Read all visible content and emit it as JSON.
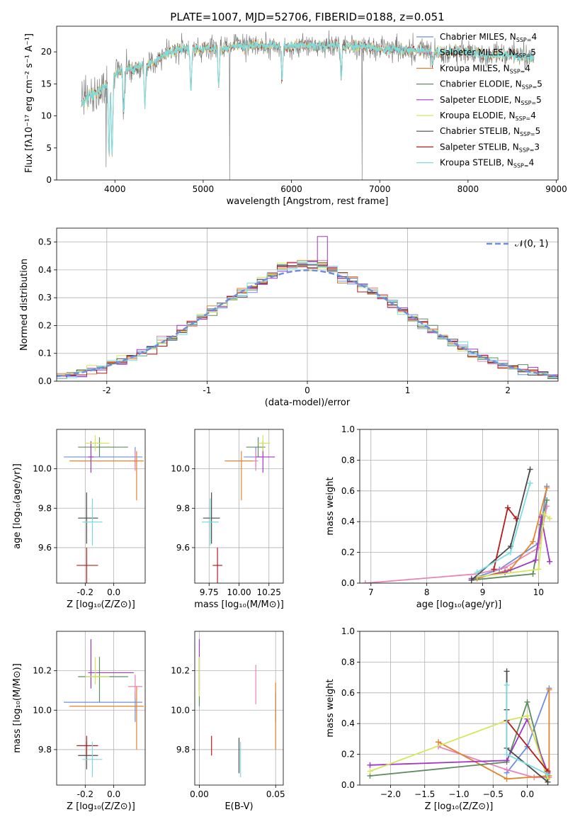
{
  "figure_title": "PLATE=1007, MJD=52706, FIBERID=0188, z=0.051",
  "legend_models": [
    {
      "name": "Chabrier MILES",
      "n_ssp": "4",
      "color": "#6f8fdc"
    },
    {
      "name": "Salpeter MILES",
      "n_ssp": "5",
      "color": "#ea83b7"
    },
    {
      "name": "Kroupa MILES",
      "n_ssp": "4",
      "color": "#e2832e"
    },
    {
      "name": "Chabrier ELODIE",
      "n_ssp": "5",
      "color": "#5d8c5f"
    },
    {
      "name": "Salpeter ELODIE",
      "n_ssp": "5",
      "color": "#9f36c4"
    },
    {
      "name": "Kroupa ELODIE",
      "n_ssp": "4",
      "color": "#d6e65a"
    },
    {
      "name": "Chabrier STELIB",
      "n_ssp": "5",
      "color": "#4a4a4a"
    },
    {
      "name": "Salpeter STELIB",
      "n_ssp": "3",
      "color": "#b71c1c"
    },
    {
      "name": "Kroupa STELIB",
      "n_ssp": "4",
      "color": "#7ddbe0"
    }
  ],
  "chart_data": [
    {
      "id": "spectrum",
      "type": "line",
      "title": "PLATE=1007, MJD=52706, FIBERID=0188, z=0.051",
      "xlabel": "wavelength [Angstrom, rest frame]",
      "ylabel": "Flux [fλ10⁻¹⁷ erg cm⁻² s⁻¹ A⁻¹]",
      "xlim": [
        3340,
        9020
      ],
      "ylim": [
        0,
        24
      ],
      "xticks": [
        4000,
        5000,
        6000,
        7000,
        8000,
        9000
      ],
      "yticks": [
        0,
        5,
        10,
        15,
        20
      ],
      "observed_color": "#808080",
      "model_color": "#7ddbe0",
      "spectrum_range": [
        3620,
        8750
      ],
      "continuum_points": [
        [
          3620,
          12
        ],
        [
          3700,
          13
        ],
        [
          3800,
          13.5
        ],
        [
          3900,
          15
        ],
        [
          4000,
          16.5
        ],
        [
          4100,
          17.5
        ],
        [
          4200,
          17
        ],
        [
          4300,
          18
        ],
        [
          4400,
          18
        ],
        [
          4600,
          20
        ],
        [
          4800,
          20.5
        ],
        [
          5000,
          20.5
        ],
        [
          5200,
          20.5
        ],
        [
          5400,
          21
        ],
        [
          5600,
          21
        ],
        [
          5800,
          21
        ],
        [
          6000,
          20.8
        ],
        [
          6200,
          21
        ],
        [
          6500,
          21
        ],
        [
          6800,
          20.8
        ],
        [
          7000,
          20.5
        ],
        [
          7200,
          20.5
        ],
        [
          7400,
          20.3
        ],
        [
          7600,
          20
        ],
        [
          7800,
          20
        ],
        [
          8000,
          20
        ],
        [
          8200,
          19.5
        ],
        [
          8500,
          19.5
        ],
        [
          8750,
          19
        ]
      ],
      "absorption_dips": [
        [
          3933,
          4
        ],
        [
          3968,
          4
        ],
        [
          4101,
          11
        ],
        [
          4340,
          12
        ],
        [
          4861,
          14
        ],
        [
          5175,
          15
        ],
        [
          5893,
          16
        ],
        [
          6563,
          16
        ],
        [
          7600,
          18
        ]
      ],
      "spikes": [
        [
          3900,
          2
        ],
        [
          4410,
          0
        ],
        [
          5300,
          0
        ],
        [
          6800,
          0
        ],
        [
          7410,
          0
        ]
      ],
      "noise_amplitude": 1.8
    },
    {
      "id": "residuals",
      "type": "histogram",
      "xlabel": "(data-model)/error",
      "ylabel": "Normed distribution",
      "xlim": [
        -2.5,
        2.5
      ],
      "ylim": [
        0,
        0.55
      ],
      "xticks": [
        -2,
        -1,
        0,
        1,
        2
      ],
      "yticks": [
        0,
        0.1,
        0.2,
        0.3,
        0.4,
        0.5
      ],
      "bin_width": 0.1,
      "legend": "𝒩(0, 1)",
      "reference_curve_color": "#6f8fdc",
      "reference": "normal_pdf"
    },
    {
      "id": "age_vs_Z",
      "type": "scatter",
      "xlabel": "Z [log₁₀(Z/Z⊙)]",
      "ylabel": "age  [log₁₀(age/yr)]",
      "xlim": [
        -0.4,
        0.22
      ],
      "ylim": [
        9.42,
        10.2
      ],
      "xticks": [
        -0.2,
        0.0
      ],
      "yticks": [
        9.6,
        9.8,
        10.0
      ],
      "points": [
        {
          "model": 0,
          "x": 0.15,
          "y": 10.06,
          "xerr": [
            0.5,
            0.05
          ],
          "yerr": [
            0.05,
            0.05
          ]
        },
        {
          "model": 1,
          "x": 0.15,
          "y": 10.04,
          "xerr": [
            0.02,
            0.02
          ],
          "yerr": [
            0.05,
            0.05
          ]
        },
        {
          "model": 2,
          "x": 0.16,
          "y": 10.04,
          "xerr": [
            0.47,
            0.05
          ],
          "yerr": [
            0.2,
            0.05
          ]
        },
        {
          "model": 3,
          "x": -0.1,
          "y": 10.11,
          "xerr": [
            0.15,
            0.2
          ],
          "yerr": [
            0.05,
            0.05
          ]
        },
        {
          "model": 4,
          "x": -0.16,
          "y": 10.06,
          "xerr": [
            0.02,
            0.02
          ],
          "yerr": [
            0.08,
            0.08
          ]
        },
        {
          "model": 5,
          "x": -0.13,
          "y": 10.13,
          "xerr": [
            0.07,
            0.1
          ],
          "yerr": [
            0.04,
            0.04
          ]
        },
        {
          "model": 6,
          "x": -0.19,
          "y": 9.75,
          "xerr": [
            0.06,
            0.08
          ],
          "yerr": [
            0.13,
            0.13
          ]
        },
        {
          "model": 7,
          "x": -0.19,
          "y": 9.51,
          "xerr": [
            0.07,
            0.08
          ],
          "yerr": [
            0.09,
            0.09
          ]
        },
        {
          "model": 8,
          "x": -0.15,
          "y": 9.73,
          "xerr": [
            0.07,
            0.07
          ],
          "yerr": [
            0.12,
            0.12
          ]
        }
      ]
    },
    {
      "id": "age_vs_mass",
      "type": "scatter",
      "xlabel": "mass [log₁₀(M/M⊙)]",
      "ylabel": "",
      "xlim": [
        9.63,
        10.37
      ],
      "ylim": [
        9.42,
        10.2
      ],
      "xticks": [
        9.75,
        10.0,
        10.25
      ],
      "yticks": [
        9.6,
        9.8,
        10.0
      ],
      "points": [
        {
          "model": 0,
          "x": 10.14,
          "y": 10.06,
          "xerr": [
            0.1,
            0.05
          ],
          "yerr": [
            0.05,
            0.05
          ]
        },
        {
          "model": 1,
          "x": 10.14,
          "y": 10.04,
          "xerr": [
            0.02,
            0.02
          ],
          "yerr": [
            0.05,
            0.05
          ]
        },
        {
          "model": 2,
          "x": 10.02,
          "y": 10.04,
          "xerr": [
            0.14,
            0.1
          ],
          "yerr": [
            0.2,
            0.05
          ]
        },
        {
          "model": 3,
          "x": 10.16,
          "y": 10.11,
          "xerr": [
            0.1,
            0.06
          ],
          "yerr": [
            0.05,
            0.05
          ]
        },
        {
          "model": 4,
          "x": 10.2,
          "y": 10.06,
          "xerr": [
            0.06,
            0.1
          ],
          "yerr": [
            0.08,
            0.08
          ]
        },
        {
          "model": 5,
          "x": 10.2,
          "y": 10.13,
          "xerr": [
            0.04,
            0.06
          ],
          "yerr": [
            0.04,
            0.04
          ]
        },
        {
          "model": 6,
          "x": 9.77,
          "y": 9.75,
          "xerr": [
            0.07,
            0.07
          ],
          "yerr": [
            0.13,
            0.13
          ]
        },
        {
          "model": 7,
          "x": 9.82,
          "y": 9.51,
          "xerr": [
            0.04,
            0.04
          ],
          "yerr": [
            0.09,
            0.09
          ]
        },
        {
          "model": 8,
          "x": 9.76,
          "y": 9.73,
          "xerr": [
            0.07,
            0.07
          ],
          "yerr": [
            0.12,
            0.12
          ]
        }
      ]
    },
    {
      "id": "mass_weight_vs_age",
      "type": "line",
      "xlabel": "age  [log₁₀(age/yr)]",
      "ylabel": "mass weight",
      "xlim": [
        6.8,
        10.35
      ],
      "ylim": [
        0,
        1.0
      ],
      "xticks": [
        7,
        8,
        9,
        10
      ],
      "yticks": [
        0.0,
        0.2,
        0.4,
        0.6,
        0.8,
        1.0
      ],
      "series": [
        {
          "model": 0,
          "x": [
            8.9,
            9.3,
            10.0,
            10.15
          ],
          "y": [
            0.04,
            0.09,
            0.26,
            0.63
          ]
        },
        {
          "model": 1,
          "x": [
            6.9,
            8.9,
            9.4,
            10.0,
            10.15
          ],
          "y": [
            0.0,
            0.06,
            0.1,
            0.23,
            0.5
          ]
        },
        {
          "model": 2,
          "x": [
            8.9,
            9.5,
            9.9,
            10.15
          ],
          "y": [
            0.03,
            0.09,
            0.27,
            0.62
          ]
        },
        {
          "model": 3,
          "x": [
            8.8,
            9.9,
            10.05,
            10.15
          ],
          "y": [
            0.02,
            0.06,
            0.38,
            0.54
          ]
        },
        {
          "model": 4,
          "x": [
            8.8,
            9.4,
            9.95,
            10.05,
            10.2
          ],
          "y": [
            0.03,
            0.07,
            0.15,
            0.43,
            0.14
          ]
        },
        {
          "model": 5,
          "x": [
            8.9,
            10.0,
            10.1,
            10.2
          ],
          "y": [
            0.04,
            0.09,
            0.45,
            0.42
          ]
        },
        {
          "model": 6,
          "x": [
            8.8,
            9.5,
            9.85
          ],
          "y": [
            0.02,
            0.24,
            0.74
          ]
        },
        {
          "model": 7,
          "x": [
            9.2,
            9.45,
            9.6
          ],
          "y": [
            0.09,
            0.49,
            0.42
          ]
        },
        {
          "model": 8,
          "x": [
            8.9,
            9.5,
            9.85
          ],
          "y": [
            0.07,
            0.2,
            0.65
          ]
        }
      ]
    },
    {
      "id": "mass_vs_Z",
      "type": "scatter",
      "xlabel": "Z [log₁₀(Z/Z⊙)]",
      "ylabel": "mass [log₁₀(M/M⊙)]",
      "xlim": [
        -0.4,
        0.22
      ],
      "ylim": [
        9.62,
        10.4
      ],
      "xticks": [
        -0.2,
        0.0
      ],
      "yticks": [
        9.8,
        10.0,
        10.2
      ],
      "points": [
        {
          "model": 0,
          "x": 0.15,
          "y": 10.04,
          "xerr": [
            0.5,
            0.05
          ],
          "yerr": [
            0.1,
            0.05
          ]
        },
        {
          "model": 1,
          "x": 0.15,
          "y": 10.12,
          "xerr": [
            0.05,
            0.05
          ],
          "yerr": [
            0.06,
            0.06
          ]
        },
        {
          "model": 2,
          "x": 0.16,
          "y": 10.02,
          "xerr": [
            0.47,
            0.05
          ],
          "yerr": [
            0.22,
            0.1
          ]
        },
        {
          "model": 3,
          "x": -0.1,
          "y": 10.17,
          "xerr": [
            0.15,
            0.2
          ],
          "yerr": [
            0.13,
            0.1
          ]
        },
        {
          "model": 4,
          "x": -0.16,
          "y": 10.19,
          "xerr": [
            0.02,
            0.3
          ],
          "yerr": [
            0.08,
            0.17
          ]
        },
        {
          "model": 5,
          "x": -0.13,
          "y": 10.17,
          "xerr": [
            0.07,
            0.1
          ],
          "yerr": [
            0.04,
            0.1
          ]
        },
        {
          "model": 6,
          "x": -0.19,
          "y": 9.77,
          "xerr": [
            0.06,
            0.08
          ],
          "yerr": [
            0.07,
            0.07
          ]
        },
        {
          "model": 7,
          "x": -0.19,
          "y": 9.82,
          "xerr": [
            0.07,
            0.08
          ],
          "yerr": [
            0.05,
            0.05
          ]
        },
        {
          "model": 8,
          "x": -0.15,
          "y": 9.75,
          "xerr": [
            0.07,
            0.07
          ],
          "yerr": [
            0.09,
            0.09
          ]
        }
      ]
    },
    {
      "id": "mass_vs_ebv",
      "type": "scatter",
      "xlabel": "E(B-V)",
      "ylabel": "",
      "xlim": [
        -0.003,
        0.055
      ],
      "ylim": [
        9.62,
        10.4
      ],
      "xticks": [
        0.0,
        0.05
      ],
      "yticks": [
        9.8,
        10.0,
        10.2
      ],
      "points": [
        {
          "model": 0,
          "x": 0.05,
          "y": 10.04,
          "xerr": [
            0,
            0
          ],
          "yerr": [
            0.1,
            0.05
          ]
        },
        {
          "model": 1,
          "x": 0.037,
          "y": 10.13,
          "xerr": [
            0,
            0
          ],
          "yerr": [
            0.1,
            0.1
          ]
        },
        {
          "model": 2,
          "x": 0.05,
          "y": 9.97,
          "xerr": [
            0,
            0
          ],
          "yerr": [
            0.17,
            0.17
          ]
        },
        {
          "model": 3,
          "x": 0.0,
          "y": 10.17,
          "xerr": [
            0,
            0
          ],
          "yerr": [
            0.15,
            0.1
          ]
        },
        {
          "model": 4,
          "x": 0.0,
          "y": 10.2,
          "xerr": [
            0,
            0
          ],
          "yerr": [
            0.1,
            0.16
          ]
        },
        {
          "model": 5,
          "x": 0.0,
          "y": 10.17,
          "xerr": [
            0,
            0
          ],
          "yerr": [
            0.1,
            0.1
          ]
        },
        {
          "model": 6,
          "x": 0.026,
          "y": 9.77,
          "xerr": [
            0,
            0
          ],
          "yerr": [
            0.09,
            0.09
          ]
        },
        {
          "model": 7,
          "x": 0.008,
          "y": 9.82,
          "xerr": [
            0,
            0
          ],
          "yerr": [
            0.05,
            0.05
          ]
        },
        {
          "model": 8,
          "x": 0.027,
          "y": 9.75,
          "xerr": [
            0,
            0
          ],
          "yerr": [
            0.09,
            0.09
          ]
        }
      ]
    },
    {
      "id": "mass_weight_vs_Z",
      "type": "line",
      "xlabel": "Z [log₁₀(Z/Z⊙)]",
      "ylabel": "mass weight",
      "xlim": [
        -2.45,
        0.45
      ],
      "ylim": [
        0,
        1.0
      ],
      "xticks": [
        -2.0,
        -1.5,
        -1.0,
        -0.5,
        0.0
      ],
      "yticks": [
        0.0,
        0.2,
        0.4,
        0.6,
        0.8,
        1.0
      ],
      "series": [
        {
          "model": 0,
          "x": [
            -0.3,
            0.0,
            0.32
          ],
          "y": [
            0.08,
            0.25,
            0.63
          ]
        },
        {
          "model": 1,
          "x": [
            -1.3,
            -0.3,
            0.1,
            0.32
          ],
          "y": [
            0.25,
            0.1,
            0.05,
            0.05
          ]
        },
        {
          "model": 2,
          "x": [
            -1.3,
            -0.3,
            0.32,
            0.32
          ],
          "y": [
            0.28,
            0.04,
            0.06,
            0.62
          ]
        },
        {
          "model": 3,
          "x": [
            -2.3,
            -0.3,
            0.0,
            0.3
          ],
          "y": [
            0.06,
            0.15,
            0.54,
            0.02
          ]
        },
        {
          "model": 4,
          "x": [
            -2.3,
            -0.3,
            0.0,
            0.3
          ],
          "y": [
            0.13,
            0.16,
            0.43,
            0.08
          ]
        },
        {
          "model": 5,
          "x": [
            -2.3,
            -0.3,
            0.0,
            0.3
          ],
          "y": [
            0.09,
            0.42,
            0.45,
            0.04
          ]
        },
        {
          "model": 6,
          "x": [
            -0.3,
            -0.3,
            -0.3,
            0.3
          ],
          "y": [
            0.74,
            0.49,
            0.24,
            0.02
          ]
        },
        {
          "model": 7,
          "x": [
            -0.3,
            0.3,
            0.3
          ],
          "y": [
            0.42,
            0.09,
            0.09
          ]
        },
        {
          "model": 8,
          "x": [
            -0.3,
            -0.3,
            0.3
          ],
          "y": [
            0.65,
            0.2,
            0.07
          ]
        }
      ]
    }
  ]
}
